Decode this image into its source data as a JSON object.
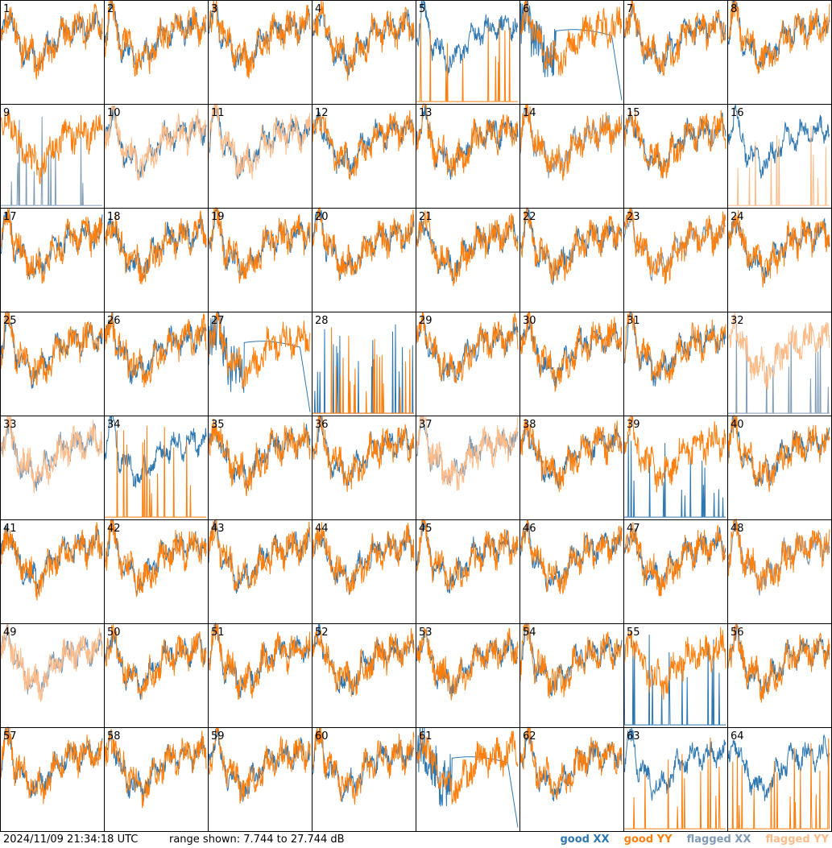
{
  "footer": {
    "timestamp": "2024/11/09 21:34:18 UTC",
    "range": "range shown: 7.744 to 27.744 dB"
  },
  "legend": [
    {
      "key": "good_xx",
      "label": "good XX",
      "color": "#2e77b0"
    },
    {
      "key": "good_yy",
      "label": "good YY",
      "color": "#ff7f0e"
    },
    {
      "key": "flagged_xx",
      "label": "flagged XX",
      "color": "#7f9bb5"
    },
    {
      "key": "flagged_yy",
      "label": "flagged YY",
      "color": "#ffbb88"
    }
  ],
  "chart_data": {
    "type": "line",
    "panel_count": 64,
    "grid": [
      8,
      8
    ],
    "ylim": [
      7.744,
      27.744
    ],
    "panels": [
      {
        "id": "1",
        "xx": "good",
        "yy": "good",
        "note": "yy-spiky-drop"
      },
      {
        "id": "2",
        "xx": "good",
        "yy": "good"
      },
      {
        "id": "3",
        "xx": "good",
        "yy": "good"
      },
      {
        "id": "4",
        "xx": "good",
        "yy": "good"
      },
      {
        "id": "5",
        "xx": "good",
        "yy": "good",
        "note": "yy-sparse-spikes"
      },
      {
        "id": "6",
        "xx": "good",
        "yy": "good",
        "note": "xx-dropout"
      },
      {
        "id": "7",
        "xx": "good",
        "yy": "good"
      },
      {
        "id": "8",
        "xx": "good",
        "yy": "good"
      },
      {
        "id": "9",
        "xx": "flagged",
        "yy": "good",
        "note": "xx-sparse-spikes"
      },
      {
        "id": "10",
        "xx": "good",
        "yy": "flagged"
      },
      {
        "id": "11",
        "xx": "good",
        "yy": "flagged"
      },
      {
        "id": "12",
        "xx": "good",
        "yy": "good"
      },
      {
        "id": "13",
        "xx": "good",
        "yy": "good"
      },
      {
        "id": "14",
        "xx": "flagged",
        "yy": "good"
      },
      {
        "id": "15",
        "xx": "good",
        "yy": "good"
      },
      {
        "id": "16",
        "xx": "good",
        "yy": "flagged",
        "note": "yy-sparse-spikes"
      },
      {
        "id": "17",
        "xx": "good",
        "yy": "good"
      },
      {
        "id": "18",
        "xx": "good",
        "yy": "good"
      },
      {
        "id": "19",
        "xx": "good",
        "yy": "good"
      },
      {
        "id": "20",
        "xx": "good",
        "yy": "good"
      },
      {
        "id": "21",
        "xx": "good",
        "yy": "good"
      },
      {
        "id": "22",
        "xx": "good",
        "yy": "good"
      },
      {
        "id": "23",
        "xx": "flagged",
        "yy": "good",
        "note": "xx-noisy-low"
      },
      {
        "id": "24",
        "xx": "good",
        "yy": "good"
      },
      {
        "id": "25",
        "xx": "good",
        "yy": "good"
      },
      {
        "id": "26",
        "xx": "good",
        "yy": "good"
      },
      {
        "id": "27",
        "xx": "good",
        "yy": "good",
        "note": "xx-dropout"
      },
      {
        "id": "28",
        "xx": "good",
        "yy": "good",
        "note": "both-sparse-spikes"
      },
      {
        "id": "29",
        "xx": "good",
        "yy": "good"
      },
      {
        "id": "30",
        "xx": "good",
        "yy": "good"
      },
      {
        "id": "31",
        "xx": "good",
        "yy": "good"
      },
      {
        "id": "32",
        "xx": "flagged",
        "yy": "flagged",
        "note": "xx-sparse-spikes"
      },
      {
        "id": "33",
        "xx": "flagged",
        "yy": "flagged"
      },
      {
        "id": "34",
        "xx": "good",
        "yy": "good",
        "note": "yy-sparse-spikes"
      },
      {
        "id": "35",
        "xx": "good",
        "yy": "good"
      },
      {
        "id": "36",
        "xx": "good",
        "yy": "good"
      },
      {
        "id": "37",
        "xx": "flagged",
        "yy": "flagged"
      },
      {
        "id": "38",
        "xx": "good",
        "yy": "good"
      },
      {
        "id": "39",
        "xx": "good",
        "yy": "good",
        "note": "xx-sparse-spikes"
      },
      {
        "id": "40",
        "xx": "good",
        "yy": "good"
      },
      {
        "id": "41",
        "xx": "good",
        "yy": "good"
      },
      {
        "id": "42",
        "xx": "good",
        "yy": "good"
      },
      {
        "id": "43",
        "xx": "good",
        "yy": "good"
      },
      {
        "id": "44",
        "xx": "good",
        "yy": "good"
      },
      {
        "id": "45",
        "xx": "good",
        "yy": "good"
      },
      {
        "id": "46",
        "xx": "good",
        "yy": "good"
      },
      {
        "id": "47",
        "xx": "good",
        "yy": "good"
      },
      {
        "id": "48",
        "xx": "flagged",
        "yy": "good"
      },
      {
        "id": "49",
        "xx": "flagged",
        "yy": "flagged"
      },
      {
        "id": "50",
        "xx": "good",
        "yy": "good"
      },
      {
        "id": "51",
        "xx": "good",
        "yy": "good"
      },
      {
        "id": "52",
        "xx": "good",
        "yy": "good"
      },
      {
        "id": "53",
        "xx": "good",
        "yy": "good"
      },
      {
        "id": "54",
        "xx": "good",
        "yy": "good"
      },
      {
        "id": "55",
        "xx": "good",
        "yy": "good",
        "note": "xx-sparse-spikes"
      },
      {
        "id": "56",
        "xx": "good",
        "yy": "good"
      },
      {
        "id": "57",
        "xx": "good",
        "yy": "good"
      },
      {
        "id": "58",
        "xx": "good",
        "yy": "good"
      },
      {
        "id": "59",
        "xx": "good",
        "yy": "good"
      },
      {
        "id": "60",
        "xx": "good",
        "yy": "good"
      },
      {
        "id": "61",
        "xx": "good",
        "yy": "good",
        "note": "xx-dropout"
      },
      {
        "id": "62",
        "xx": "good",
        "yy": "good"
      },
      {
        "id": "63",
        "xx": "good",
        "yy": "good",
        "note": "yy-sparse-spikes-only"
      },
      {
        "id": "64",
        "xx": "good",
        "yy": "good",
        "note": "yy-sparse-spikes"
      }
    ]
  }
}
